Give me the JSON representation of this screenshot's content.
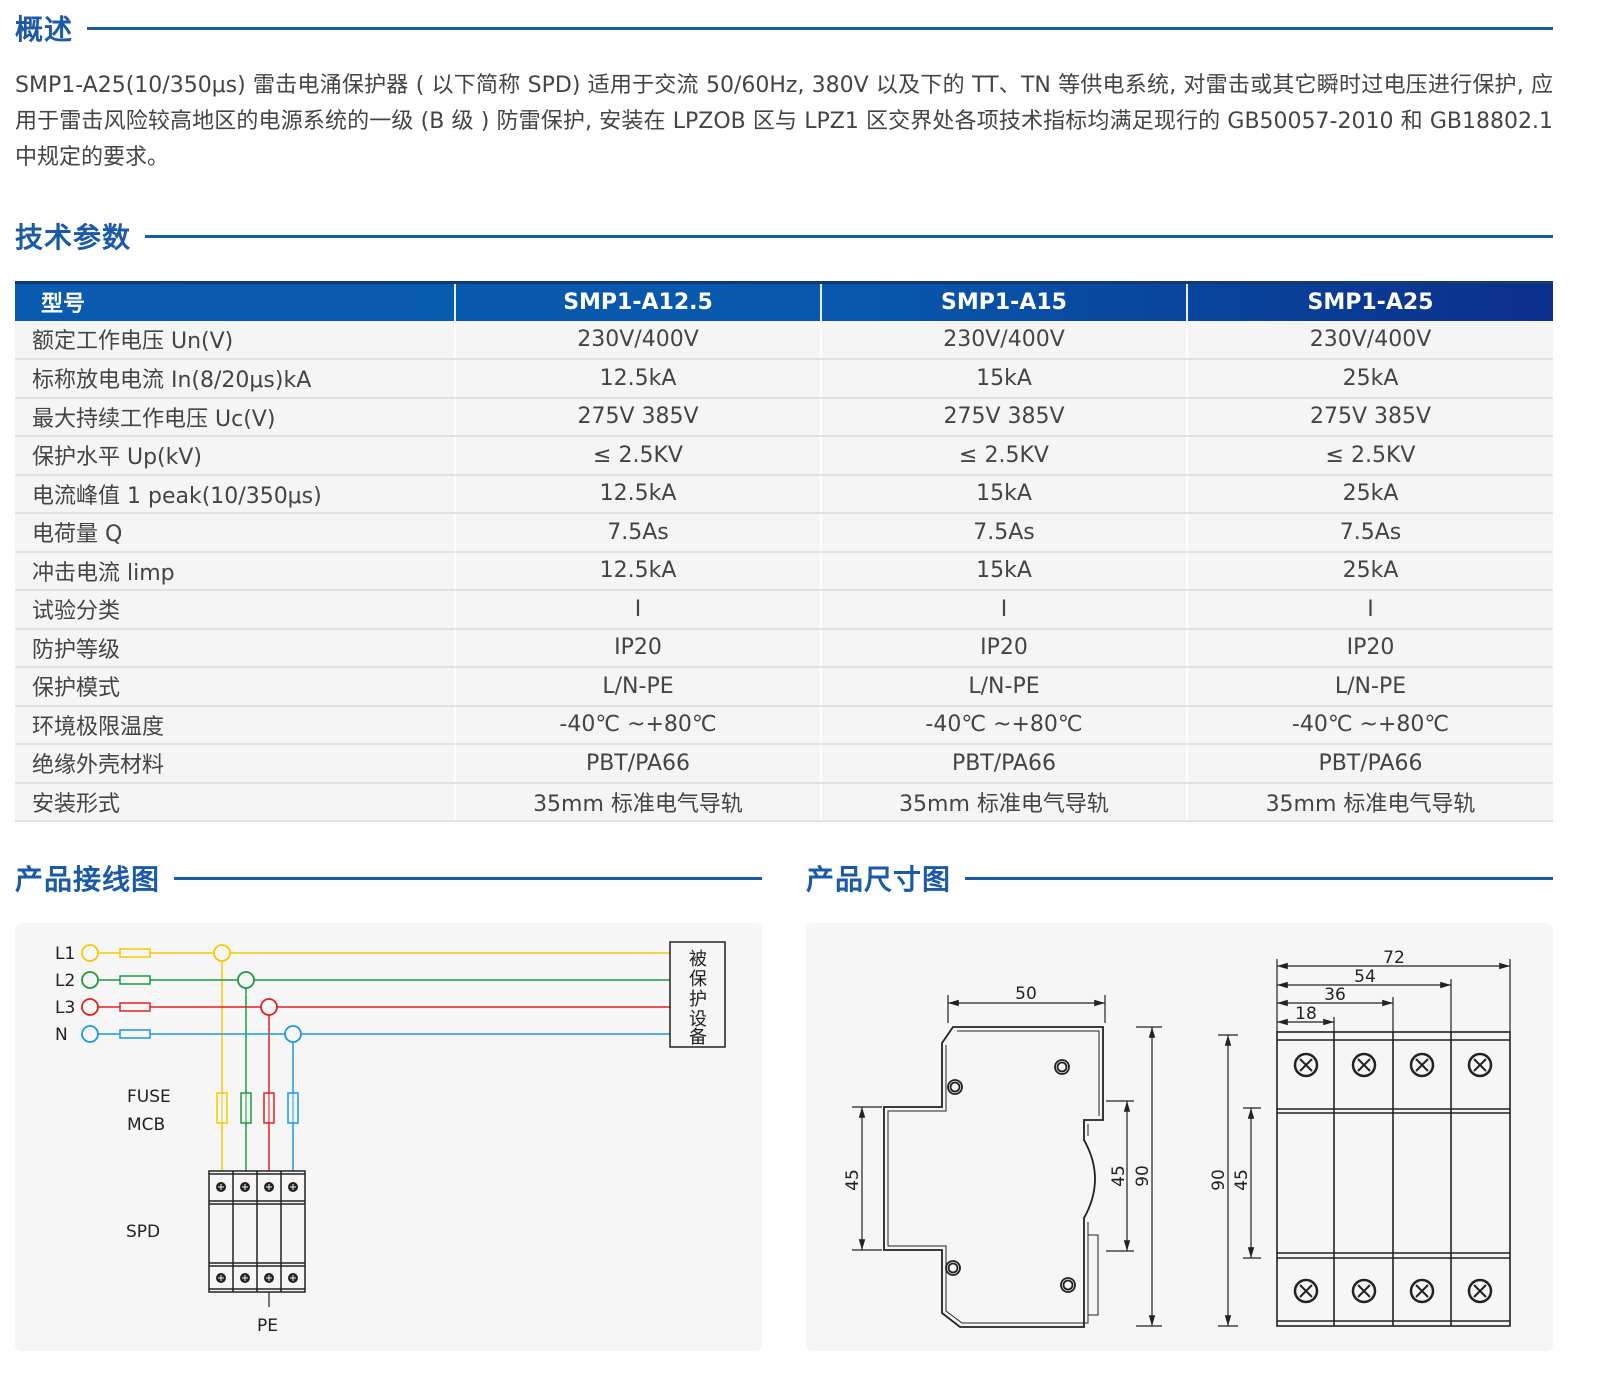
{
  "overview": {
    "title": "概述",
    "text": "SMP1-A25(10/350μs) 雷击电涌保护器 ( 以下简称 SPD) 适用于交流 50/60Hz, 380V 以及下的 TT、TN 等供电系统, 对雷击或其它瞬时过电压进行保护, 应用于雷击风险较高地区的电源系统的一级 (B 级 ) 防雷保护, 安装在 LPZOB 区与 LPZ1 区交界处各项技术指标均满足现行的 GB50057-2010 和 GB18802.1 中规定的要求。"
  },
  "specs": {
    "title": "技术参数",
    "headers": [
      "型号",
      "SMP1-A12.5",
      "SMP1-A15",
      "SMP1-A25"
    ],
    "rows": [
      [
        "额定工作电压 Un(V)",
        "230V/400V",
        "230V/400V",
        "230V/400V"
      ],
      [
        "标称放电电流 In(8/20μs)kA",
        "12.5kA",
        "15kA",
        "25kA"
      ],
      [
        "最大持续工作电压 Uc(V)",
        "275V 385V",
        "275V 385V",
        "275V 385V"
      ],
      [
        "保护水平 Up(kV)",
        "≤ 2.5KV",
        "≤ 2.5KV",
        "≤ 2.5KV"
      ],
      [
        "电流峰值 1 peak(10/350μs)",
        "12.5kA",
        "15kA",
        "25kA"
      ],
      [
        "电荷量 Q",
        "7.5As",
        "7.5As",
        "7.5As"
      ],
      [
        "冲击电流 limp",
        "12.5kA",
        "15kA",
        "25kA"
      ],
      [
        "试验分类",
        "I",
        "I",
        "I"
      ],
      [
        "防护等级",
        "IP20",
        "IP20",
        "IP20"
      ],
      [
        "保护模式",
        "L/N-PE",
        "L/N-PE",
        "L/N-PE"
      ],
      [
        "环境极限温度",
        "-40℃ ~+80℃",
        "-40℃ ~+80℃",
        "-40℃ ~+80℃"
      ],
      [
        "绝缘外壳材料",
        "PBT/PA66",
        "PBT/PA66",
        "PBT/PA66"
      ],
      [
        "安装形式",
        "35mm 标准电气导轨",
        "35mm 标准电气导轨",
        "35mm 标准电气导轨"
      ]
    ]
  },
  "wiring": {
    "title": "产品接线图",
    "lines": [
      {
        "label": "L1",
        "color": "#f5c800"
      },
      {
        "label": "L2",
        "color": "#1a9a40"
      },
      {
        "label": "L3",
        "color": "#e52020"
      },
      {
        "label": "N",
        "color": "#1a9ae0"
      }
    ],
    "device": [
      "被",
      "保",
      "护",
      "设",
      "备"
    ],
    "fuse": "FUSE",
    "mcb": "MCB",
    "spd": "SPD",
    "pe": "PE"
  },
  "dimensions": {
    "title": "产品尺寸图",
    "side": {
      "width": "50",
      "rail": "45",
      "front": "45",
      "height": "90"
    },
    "front": {
      "w72": "72",
      "w54": "54",
      "w36": "36",
      "w18": "18",
      "height": "90",
      "rail": "45"
    }
  },
  "colors": {
    "accent": "#1a5aa8",
    "header_start": "#0a5bb0",
    "header_end": "#0b2f8a"
  }
}
